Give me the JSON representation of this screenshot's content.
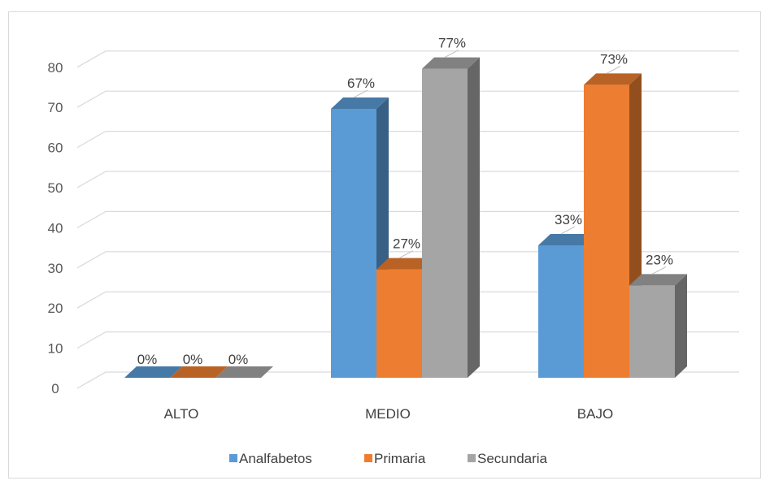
{
  "chart_data": {
    "type": "bar",
    "title": "",
    "xlabel": "",
    "ylabel": "",
    "ylim": [
      0,
      80
    ],
    "yticks": [
      0,
      10,
      20,
      30,
      40,
      50,
      60,
      70,
      80
    ],
    "categories": [
      "ALTO",
      "MEDIO",
      "BAJO"
    ],
    "series": [
      {
        "name": "Analfabetos",
        "color": "#5b9bd5",
        "values": [
          0,
          67,
          33
        ],
        "labels": [
          "0%",
          "67%",
          "33%"
        ]
      },
      {
        "name": "Primaria",
        "color": "#ed7d31",
        "values": [
          0,
          27,
          73
        ],
        "labels": [
          "0%",
          "27%",
          "73%"
        ]
      },
      {
        "name": "Secundaria",
        "color": "#a5a5a5",
        "values": [
          0,
          77,
          23
        ],
        "labels": [
          "0%",
          "77%",
          "23%"
        ]
      }
    ],
    "grid": true,
    "legend": "bottom",
    "style": "3d-clustered-column"
  }
}
